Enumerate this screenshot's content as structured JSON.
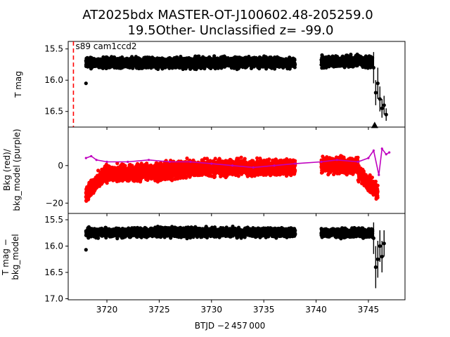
{
  "title_line1": "AT2025bdx  MASTER-OT-J100602.48-205259.0",
  "title_line2": "19.5Other- Unclassified z= -99.0",
  "annotation": "s89 cam1ccd2",
  "xlabel": "BTJD −2 457 000",
  "colors": {
    "data": "#000000",
    "bkg": "#ff0000",
    "model": "#bf00bf",
    "marker": "#ff0000"
  },
  "chart_data": [
    {
      "type": "scatter",
      "panel": "top",
      "ylabel": "T mag",
      "xlim": [
        3716.3,
        3748.5
      ],
      "ylim": [
        16.75,
        15.38
      ],
      "y_inverted": true,
      "xticks": [
        3720,
        3725,
        3730,
        3735,
        3740,
        3745
      ],
      "yticks": [
        15.5,
        16.0,
        16.5
      ],
      "ytick_labels": [
        "15.5",
        "16.0",
        "16.5"
      ],
      "discovery_marker_x": 3716.8,
      "segments": [
        {
          "x": [
            3718.0,
            3738.0
          ],
          "y_center": 15.72,
          "y_spread": 0.12
        },
        {
          "x": [
            3740.5,
            3745.4
          ],
          "y_center": 15.7,
          "y_spread": 0.12
        }
      ],
      "tail_points": [
        {
          "x": 3745.5,
          "y": 15.8,
          "err": 0.25
        },
        {
          "x": 3745.7,
          "y": 16.2,
          "err": 0.2
        },
        {
          "x": 3745.9,
          "y": 16.05,
          "err": 0.25
        },
        {
          "x": 3746.1,
          "y": 16.3,
          "err": 0.2
        },
        {
          "x": 3746.3,
          "y": 16.45,
          "err": 0.15
        },
        {
          "x": 3746.5,
          "y": 16.4,
          "err": 0.15
        },
        {
          "x": 3746.7,
          "y": 16.55,
          "err": 0.1
        }
      ],
      "upper_limit_x": 3745.6,
      "upper_limit_y": 16.72
    },
    {
      "type": "scatter",
      "panel": "middle",
      "ylabel_line1": "Bkg (red)/",
      "ylabel_line2": "bkg_model (purple)",
      "xlim": [
        3716.3,
        3748.5
      ],
      "ylim": [
        -25.5,
        20.5
      ],
      "yticks": [
        0,
        -20
      ],
      "ytick_labels": [
        "0",
        "−20"
      ],
      "bkg_segments": [
        {
          "x": [
            3718.0,
            3738.0
          ]
        },
        {
          "x": [
            3740.5,
            3745.9
          ]
        }
      ],
      "model_points": [
        [
          3718.0,
          4
        ],
        [
          3718.5,
          5
        ],
        [
          3719.0,
          3
        ],
        [
          3720.0,
          2
        ],
        [
          3722.0,
          2
        ],
        [
          3724.0,
          3
        ],
        [
          3726.0,
          2
        ],
        [
          3728.0,
          2
        ],
        [
          3730.0,
          1
        ],
        [
          3732.0,
          0
        ],
        [
          3734.0,
          -1
        ],
        [
          3736.0,
          0
        ],
        [
          3738.0,
          1
        ],
        [
          3740.5,
          2
        ],
        [
          3742.0,
          3
        ],
        [
          3744.0,
          2
        ],
        [
          3745.0,
          4
        ],
        [
          3745.5,
          8
        ],
        [
          3746.0,
          -5
        ],
        [
          3746.3,
          9
        ],
        [
          3746.7,
          6
        ],
        [
          3747.0,
          7
        ]
      ]
    },
    {
      "type": "scatter",
      "panel": "bottom",
      "ylabel_line1": "T mag −",
      "ylabel_line2": "bkg_model",
      "xlim": [
        3716.3,
        3748.5
      ],
      "ylim": [
        17.02,
        15.38
      ],
      "y_inverted": true,
      "yticks": [
        15.5,
        16.0,
        16.5,
        17.0
      ],
      "ytick_labels": [
        "15.5",
        "16.0",
        "16.5",
        "17.0"
      ],
      "segments": [
        {
          "x": [
            3718.0,
            3738.0
          ],
          "y_center": 15.74,
          "y_spread": 0.12
        },
        {
          "x": [
            3740.5,
            3745.4
          ],
          "y_center": 15.75,
          "y_spread": 0.12
        }
      ],
      "tail_points": [
        {
          "x": 3745.5,
          "y": 15.85,
          "err": 0.3
        },
        {
          "x": 3745.7,
          "y": 16.4,
          "err": 0.4
        },
        {
          "x": 3745.9,
          "y": 16.25,
          "err": 0.35
        },
        {
          "x": 3746.1,
          "y": 16.0,
          "err": 0.3
        },
        {
          "x": 3746.3,
          "y": 16.2,
          "err": 0.3
        },
        {
          "x": 3746.5,
          "y": 15.95,
          "err": 0.25
        }
      ]
    }
  ]
}
